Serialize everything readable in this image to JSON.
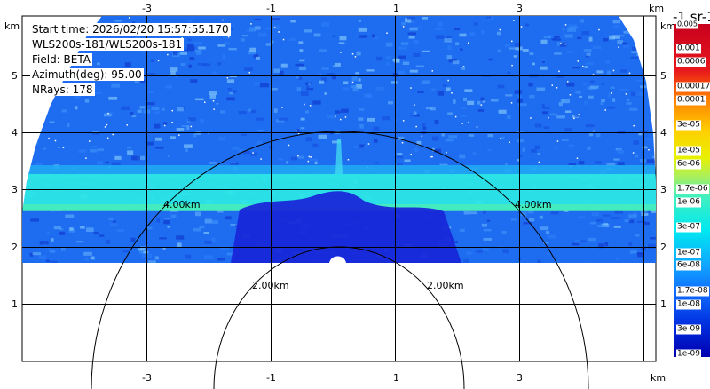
{
  "info": {
    "start_time": "Start time: 2026/02/20 15:57:55.170",
    "instrument": "WLS200s-181/WLS200s-181",
    "field": "Field: BETA",
    "azimuth": "Azimuth(deg): 95.00",
    "nrays": "NRays: 178"
  },
  "axes": {
    "x_unit": "km",
    "y_unit": "km",
    "x_ticks": [
      "-3",
      "-1",
      "1",
      "3"
    ],
    "y_ticks": [
      "5",
      "4",
      "3",
      "2",
      "1"
    ]
  },
  "rings": {
    "inner_label": "2.00km",
    "outer_label": "4.00km"
  },
  "colorbar": {
    "title": "-1 sr-1",
    "top_label": "0.005",
    "labels": [
      "0.001",
      "0.0006",
      "0.00017",
      "0.0001",
      "3e-05",
      "1e-05",
      "6e-06",
      "1.7e-06",
      "1e-06",
      "3e-07",
      "1e-07",
      "6e-08",
      "1.7e-08",
      "1e-08",
      "3e-09",
      "1e-09"
    ]
  }
}
